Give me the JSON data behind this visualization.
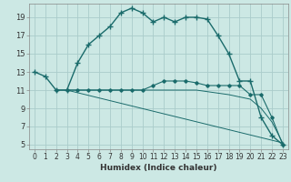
{
  "xlabel": "Humidex (Indice chaleur)",
  "bg_color": "#cce8e4",
  "grid_color": "#aaccca",
  "line_color": "#1a6b6b",
  "xlim": [
    -0.5,
    23.5
  ],
  "ylim": [
    4.5,
    20.5
  ],
  "xticks": [
    0,
    1,
    2,
    3,
    4,
    5,
    6,
    7,
    8,
    9,
    10,
    11,
    12,
    13,
    14,
    15,
    16,
    17,
    18,
    19,
    20,
    21,
    22,
    23
  ],
  "yticks": [
    5,
    7,
    9,
    11,
    13,
    15,
    17,
    19
  ],
  "curve1_x": [
    0,
    1,
    2,
    3,
    4,
    5,
    6,
    7,
    8,
    9,
    10,
    11,
    12,
    13,
    14,
    15,
    16,
    17,
    18,
    19,
    20,
    21,
    22,
    23
  ],
  "curve1_y": [
    13,
    12.5,
    11,
    11,
    14,
    16,
    17,
    18,
    19.5,
    20.0,
    19.5,
    18.5,
    19,
    18.5,
    19,
    19,
    18.8,
    17,
    15,
    12,
    12,
    8,
    6,
    5
  ],
  "curve2_x": [
    2,
    3,
    4,
    5,
    6,
    7,
    8,
    9,
    10,
    11,
    12,
    13,
    14,
    15,
    16,
    17,
    18,
    19,
    20,
    21,
    22,
    23
  ],
  "curve2_y": [
    11,
    11,
    11,
    11,
    11,
    11,
    11,
    11,
    11,
    11.5,
    12,
    12,
    12,
    11.8,
    11.5,
    11.5,
    11.5,
    11.5,
    10.5,
    10.5,
    8,
    5
  ],
  "curve3_x": [
    3,
    6,
    9,
    12,
    15,
    18,
    20,
    21,
    22,
    23
  ],
  "curve3_y": [
    11,
    11,
    11,
    11,
    11,
    10.5,
    10,
    9,
    7.5,
    5.2
  ],
  "curve4_x": [
    3,
    23
  ],
  "curve4_y": [
    11,
    5.2
  ],
  "xlabel_fontsize": 6.5,
  "tick_fontsize": 5.5
}
